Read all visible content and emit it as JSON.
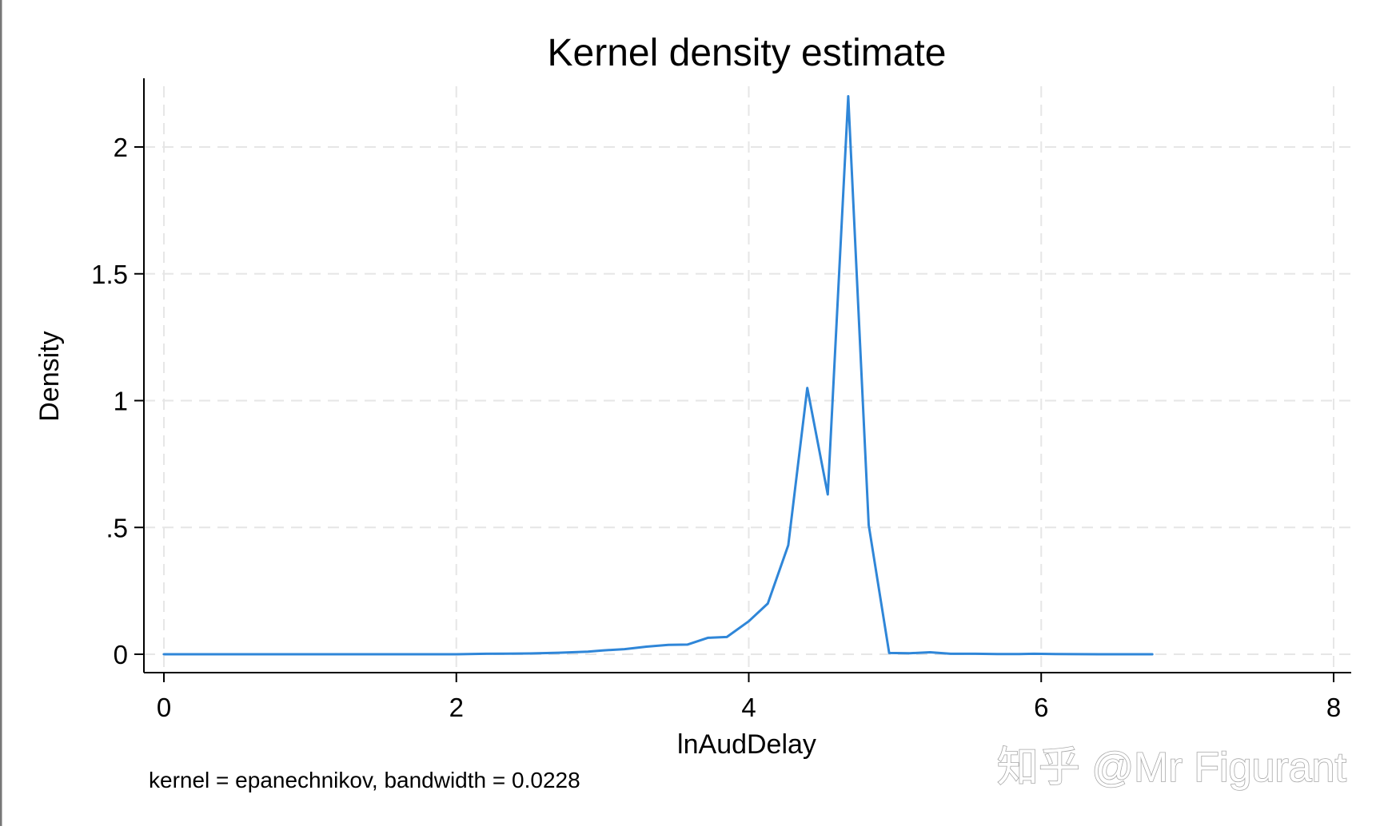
{
  "chart_data": {
    "type": "line",
    "title": "Kernel density estimate",
    "xlabel": "lnAudDelay",
    "ylabel": "Density",
    "note": "kernel = epanechnikov, bandwidth = 0.0228",
    "xlim": [
      0,
      8
    ],
    "ylim": [
      0,
      2.25
    ],
    "xticks": [
      0,
      2,
      4,
      6,
      8
    ],
    "xtick_labels": [
      "0",
      "2",
      "4",
      "6",
      "8"
    ],
    "yticks": [
      0,
      0.5,
      1,
      1.5,
      2
    ],
    "ytick_labels": [
      "0",
      ".5",
      "1",
      "1.5",
      "2"
    ],
    "grid": true,
    "line_color": "#2f86d8",
    "series": [
      {
        "x": [
          0,
          0.5,
          1.0,
          1.5,
          2.0,
          2.2,
          2.5,
          2.7,
          2.9,
          3.0,
          3.15,
          3.3,
          3.45,
          3.58,
          3.72,
          3.85,
          4.0,
          4.13,
          4.27,
          4.4,
          4.54,
          4.68,
          4.82,
          4.96,
          5.1,
          5.24,
          5.38,
          5.55,
          5.7,
          5.85,
          5.95,
          6.1,
          6.4,
          6.76
        ],
        "y": [
          0,
          0,
          0,
          0,
          0,
          0.002,
          0.003,
          0.006,
          0.01,
          0.015,
          0.02,
          0.03,
          0.037,
          0.038,
          0.065,
          0.068,
          0.13,
          0.2,
          0.43,
          1.05,
          0.63,
          2.2,
          0.51,
          0.005,
          0.004,
          0.008,
          0.002,
          0.002,
          0.001,
          0.001,
          0.002,
          0.001,
          0,
          0
        ]
      }
    ]
  },
  "watermark": {
    "text": "知乎 @Mr Figurant"
  }
}
